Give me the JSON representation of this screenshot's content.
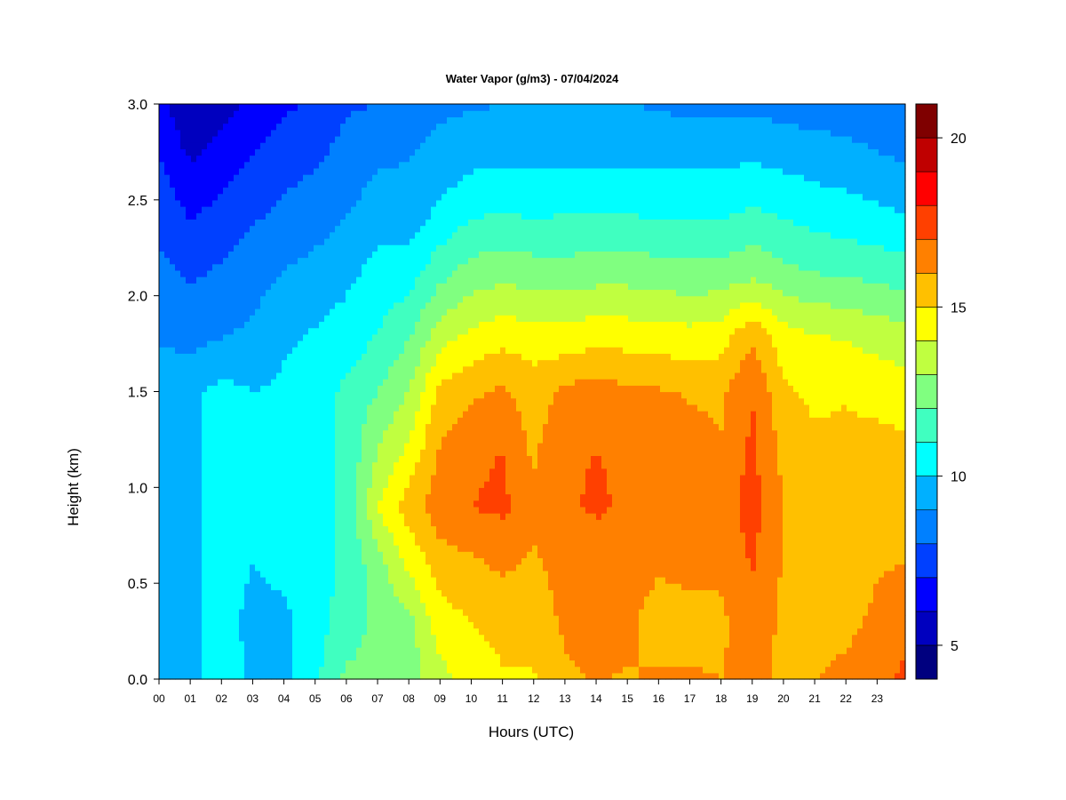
{
  "chart_data": {
    "type": "heatmap",
    "title": "Water Vapor (g/m3) - 07/04/2024",
    "xlabel": "Hours (UTC)",
    "ylabel": "Height (km)",
    "x_ticks": [
      "00",
      "01",
      "02",
      "03",
      "04",
      "05",
      "06",
      "07",
      "08",
      "09",
      "10",
      "11",
      "12",
      "13",
      "14",
      "15",
      "16",
      "17",
      "18",
      "19",
      "20",
      "21",
      "22",
      "23"
    ],
    "xlim": [
      0,
      23.9
    ],
    "y_ticks": [
      "0.0",
      "0.5",
      "1.0",
      "1.5",
      "2.0",
      "2.5",
      "3.0"
    ],
    "ylim": [
      0,
      3.0
    ],
    "colorbar": {
      "ticks": [
        "5",
        "10",
        "15",
        "20"
      ],
      "tick_values": [
        5,
        10,
        15,
        20
      ],
      "range": [
        4,
        21
      ],
      "levels": [
        4,
        5,
        6,
        7,
        8,
        9,
        10,
        11,
        12,
        13,
        14,
        15,
        16,
        17,
        18,
        19,
        20,
        21
      ],
      "colors": [
        "#00007f",
        "#0000bf",
        "#0000ff",
        "#0040ff",
        "#0080ff",
        "#00b0ff",
        "#00ffff",
        "#40ffc0",
        "#80ff80",
        "#c0ff40",
        "#ffff00",
        "#ffc000",
        "#ff8000",
        "#ff4000",
        "#ff0000",
        "#bf0000",
        "#7f0000"
      ]
    },
    "hours": [
      0,
      1,
      2,
      3,
      4,
      5,
      6,
      7,
      8,
      9,
      10,
      11,
      12,
      13,
      14,
      15,
      16,
      17,
      18,
      19,
      20,
      21,
      22,
      23,
      23.9
    ],
    "heights_km": [
      0.0,
      0.3,
      0.6,
      0.9,
      1.2,
      1.5,
      1.8,
      2.1,
      2.4,
      2.7,
      3.0
    ],
    "values_gm3": [
      [
        9.0,
        9.6,
        9.6,
        9.5,
        9.6,
        9.6,
        8.9,
        8.3,
        7.7,
        7.1,
        6.4
      ],
      [
        9.6,
        9.8,
        9.8,
        9.8,
        9.8,
        9.8,
        8.6,
        7.9,
        7.0,
        6.0,
        5.0
      ],
      [
        10.5,
        10.3,
        10.3,
        10.3,
        10.3,
        10.3,
        8.9,
        8.2,
        7.4,
        6.5,
        5.6
      ],
      [
        9.8,
        9.8,
        10.0,
        10.0,
        10.0,
        10.0,
        9.2,
        8.6,
        7.9,
        7.1,
        6.3
      ],
      [
        9.8,
        9.8,
        10.2,
        10.2,
        10.2,
        10.2,
        9.8,
        9.1,
        8.3,
        7.6,
        6.8
      ],
      [
        10.8,
        10.5,
        10.6,
        10.6,
        10.6,
        10.6,
        10.1,
        9.4,
        8.6,
        7.9,
        7.2
      ],
      [
        12.2,
        11.5,
        11.2,
        11.2,
        11.2,
        11.2,
        10.4,
        9.8,
        9.0,
        8.4,
        7.9
      ],
      [
        12.2,
        12.3,
        12.6,
        14.0,
        13.0,
        12.0,
        11.0,
        10.4,
        9.6,
        8.9,
        8.0
      ],
      [
        12.5,
        12.6,
        14.2,
        15.5,
        14.2,
        13.0,
        11.9,
        10.6,
        9.6,
        9.0,
        8.4
      ],
      [
        13.6,
        14.6,
        15.5,
        16.6,
        16.1,
        15.3,
        13.5,
        11.8,
        10.3,
        9.4,
        8.8
      ],
      [
        14.5,
        15.0,
        15.8,
        17.0,
        16.8,
        15.8,
        14.2,
        12.5,
        11.0,
        9.8,
        8.9
      ],
      [
        14.9,
        15.3,
        16.2,
        17.2,
        17.0,
        16.2,
        14.6,
        12.8,
        11.2,
        9.9,
        9.0
      ],
      [
        14.9,
        15.4,
        15.8,
        16.4,
        15.8,
        15.5,
        14.4,
        12.6,
        11.0,
        9.8,
        9.0
      ],
      [
        15.8,
        16.2,
        16.4,
        16.9,
        16.9,
        16.2,
        14.3,
        12.5,
        11.1,
        9.8,
        9.0
      ],
      [
        16.1,
        16.3,
        16.6,
        17.1,
        17.0,
        16.5,
        14.6,
        12.7,
        11.1,
        9.9,
        9.0
      ],
      [
        15.9,
        16.3,
        16.5,
        16.9,
        16.9,
        16.2,
        14.5,
        12.7,
        11.1,
        9.9,
        9.0
      ],
      [
        16.2,
        15.4,
        16.2,
        16.6,
        16.7,
        16.1,
        14.4,
        12.6,
        11.0,
        9.9,
        8.9
      ],
      [
        16.1,
        15.6,
        16.3,
        16.8,
        16.4,
        15.9,
        14.3,
        12.4,
        11.0,
        9.8,
        8.7
      ],
      [
        16.0,
        15.8,
        16.2,
        16.6,
        16.1,
        15.8,
        14.5,
        12.5,
        11.0,
        9.8,
        8.7
      ],
      [
        16.4,
        16.6,
        17.1,
        17.4,
        17.2,
        17.0,
        15.8,
        12.9,
        11.3,
        10.0,
        8.8
      ],
      [
        15.7,
        15.8,
        15.9,
        16.0,
        15.7,
        15.2,
        14.4,
        12.4,
        11.0,
        9.8,
        8.6
      ],
      [
        16.0,
        15.7,
        15.4,
        15.3,
        15.2,
        14.8,
        14.0,
        12.1,
        10.7,
        9.6,
        8.5
      ],
      [
        16.2,
        15.8,
        15.5,
        15.6,
        15.3,
        14.9,
        13.9,
        12.0,
        10.5,
        9.5,
        8.4
      ],
      [
        16.4,
        16.2,
        15.9,
        15.9,
        15.4,
        14.6,
        13.6,
        11.8,
        10.3,
        9.2,
        8.1
      ],
      [
        17.3,
        16.6,
        16.0,
        15.8,
        15.2,
        14.5,
        13.4,
        11.6,
        10.1,
        9.0,
        8.0
      ]
    ]
  }
}
